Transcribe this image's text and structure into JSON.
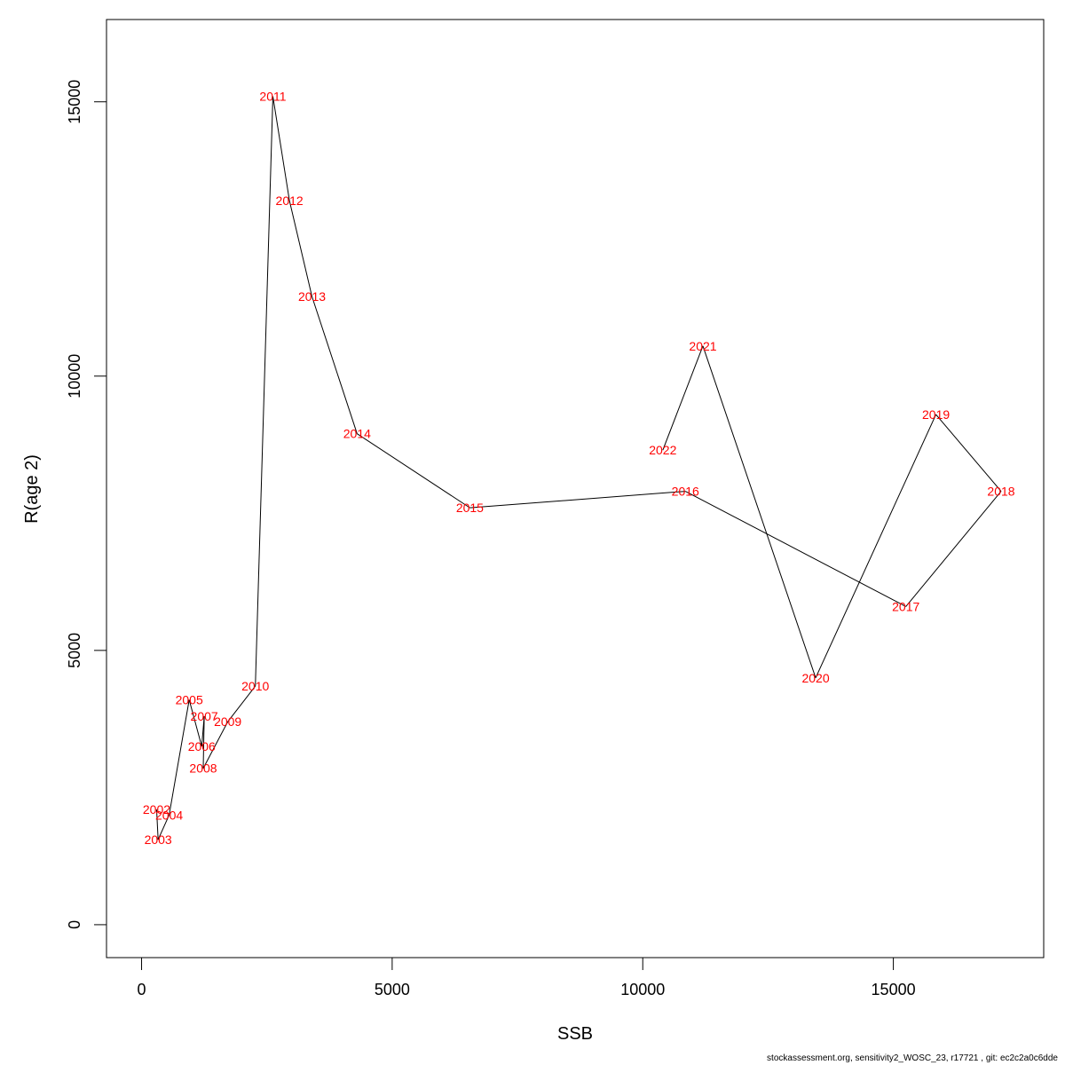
{
  "chart_data": {
    "type": "line",
    "xlabel": "SSB",
    "ylabel": "R(age 2)",
    "xlim": [
      -700,
      18000
    ],
    "ylim": [
      -600,
      16500
    ],
    "xticks": [
      0,
      5000,
      10000,
      15000
    ],
    "yticks": [
      0,
      5000,
      10000,
      15000
    ],
    "grid": false,
    "line_color": "#000000",
    "label_color": "#ff0000",
    "points": [
      {
        "label": "2002",
        "x": 300,
        "y": 2100
      },
      {
        "label": "2003",
        "x": 330,
        "y": 1550
      },
      {
        "label": "2004",
        "x": 550,
        "y": 2000
      },
      {
        "label": "2005",
        "x": 950,
        "y": 4100
      },
      {
        "label": "2006",
        "x": 1200,
        "y": 3250
      },
      {
        "label": "2007",
        "x": 1250,
        "y": 3800
      },
      {
        "label": "2008",
        "x": 1230,
        "y": 2850
      },
      {
        "label": "2009",
        "x": 1720,
        "y": 3700
      },
      {
        "label": "2010",
        "x": 2270,
        "y": 4350
      },
      {
        "label": "2011",
        "x": 2620,
        "y": 15100
      },
      {
        "label": "2012",
        "x": 2950,
        "y": 13200
      },
      {
        "label": "2013",
        "x": 3400,
        "y": 11450
      },
      {
        "label": "2014",
        "x": 4300,
        "y": 8950
      },
      {
        "label": "2015",
        "x": 6550,
        "y": 7600
      },
      {
        "label": "2016",
        "x": 10850,
        "y": 7900
      },
      {
        "label": "2017",
        "x": 15250,
        "y": 5800
      },
      {
        "label": "2018",
        "x": 17150,
        "y": 7900
      },
      {
        "label": "2019",
        "x": 15850,
        "y": 9300
      },
      {
        "label": "2020",
        "x": 13450,
        "y": 4500
      },
      {
        "label": "2021",
        "x": 11200,
        "y": 10550
      },
      {
        "label": "2022",
        "x": 10400,
        "y": 8650
      }
    ]
  },
  "footer": "stockassessment.org, sensitivity2_WOSC_23, r17721 , git: ec2c2a0c6dde"
}
